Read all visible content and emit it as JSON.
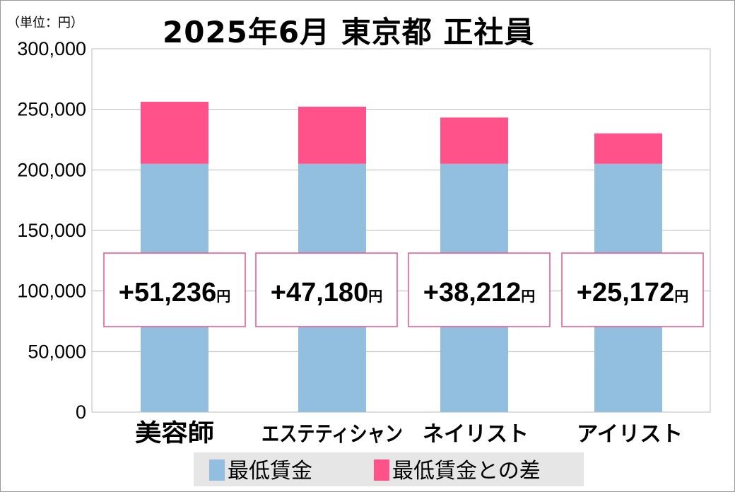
{
  "chart_data": {
    "type": "bar",
    "stacked": true,
    "title": "2025年6月 東京都 正社員",
    "unit_label": "（単位：円）",
    "categories": [
      "美容師",
      "エステティシャン",
      "ネイリスト",
      "アイリスト"
    ],
    "series": [
      {
        "name": "最低賃金",
        "color": "#92bfdf",
        "values": [
          205000,
          205000,
          205000,
          205000
        ]
      },
      {
        "name": "最低賃金との差",
        "color": "#ff528a",
        "values": [
          51236,
          47180,
          38212,
          25172
        ]
      }
    ],
    "data_labels": [
      "+51,236",
      "+47,180",
      "+38,212",
      "+25,172"
    ],
    "data_label_unit": "円",
    "ylim": [
      0,
      300000
    ],
    "yticks": [
      0,
      50000,
      100000,
      150000,
      200000,
      250000,
      300000
    ],
    "ytick_labels": [
      "0",
      "50,000",
      "100,000",
      "150,000",
      "200,000",
      "250,000",
      "300,000"
    ],
    "grid": true,
    "legend_position": "bottom"
  }
}
